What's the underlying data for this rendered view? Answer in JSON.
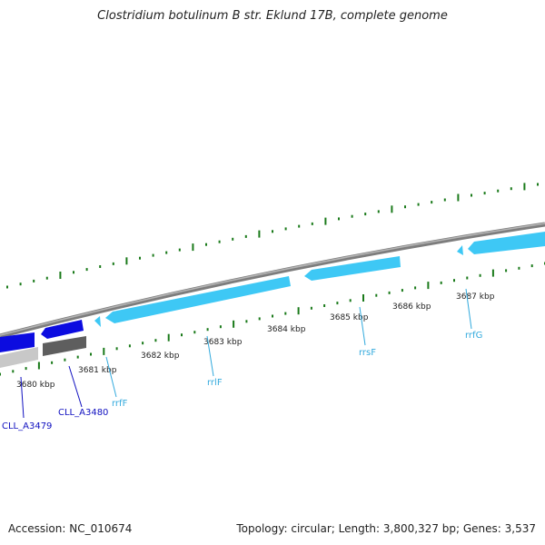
{
  "title": "Clostridium botulinum B str. Eklund 17B, complete genome",
  "footer": {
    "accession": "Accession: NC_010674",
    "summary": "Topology: circular; Length: 3,800,327 bp; Genes: 3,537"
  },
  "colors": {
    "rrna": "#3ec8f5",
    "cds": "#0c0ce0",
    "ruler_tick": "#1a7a1a",
    "backbone": "#808080",
    "gene_label": "#1010c0",
    "rna_label": "#33aadd"
  },
  "ruler_labels": [
    "3680 kbp",
    "3681 kbp",
    "3682 kbp",
    "3683 kbp",
    "3684 kbp",
    "3685 kbp",
    "3686 kbp",
    "3687 kbp"
  ],
  "features": [
    {
      "label": "CLL_A3479",
      "type": "CDS"
    },
    {
      "label": "CLL_A3480",
      "type": "CDS"
    },
    {
      "label": "rrfF",
      "type": "rRNA"
    },
    {
      "label": "rrlF",
      "type": "rRNA"
    },
    {
      "label": "rrsF",
      "type": "rRNA"
    },
    {
      "label": "rrfG",
      "type": "rRNA"
    }
  ]
}
